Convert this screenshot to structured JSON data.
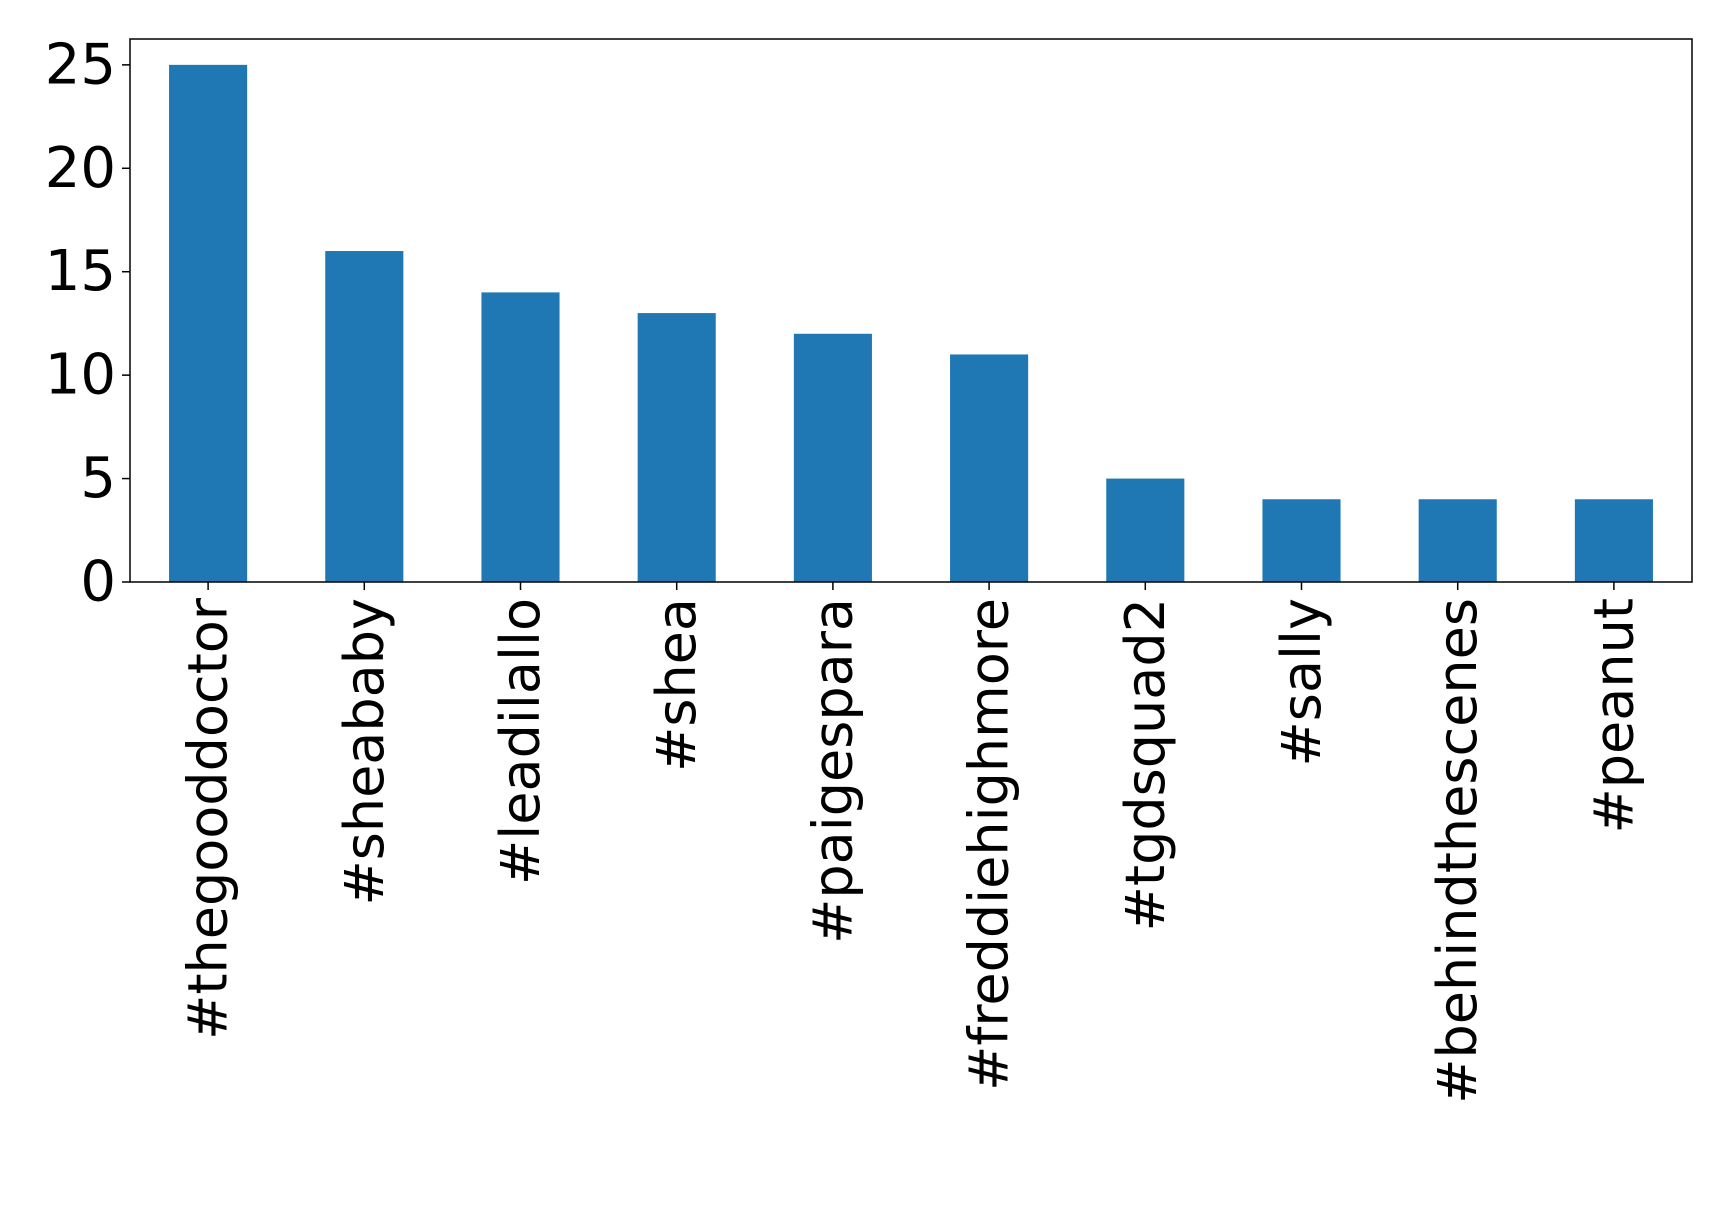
{
  "chart_data": {
    "type": "bar",
    "categories": [
      "#thegooddoctor",
      "#sheababy",
      "#leadilallo",
      "#shea",
      "#paigespara",
      "#freddiehighmore",
      "#tgdsquad2",
      "#sally",
      "#behindthescenes",
      "#peanut"
    ],
    "values": [
      25,
      16,
      14,
      13,
      12,
      11,
      5,
      4,
      4,
      4
    ],
    "yticks": [
      0,
      5,
      10,
      15,
      20,
      25
    ],
    "ylim": [
      0,
      26.25
    ],
    "grid": false,
    "legend": "none",
    "title": "",
    "xlabel": "",
    "ylabel": ""
  },
  "colors": {
    "bar": "#1f77b4",
    "axis": "#000000",
    "background": "#ffffff"
  }
}
